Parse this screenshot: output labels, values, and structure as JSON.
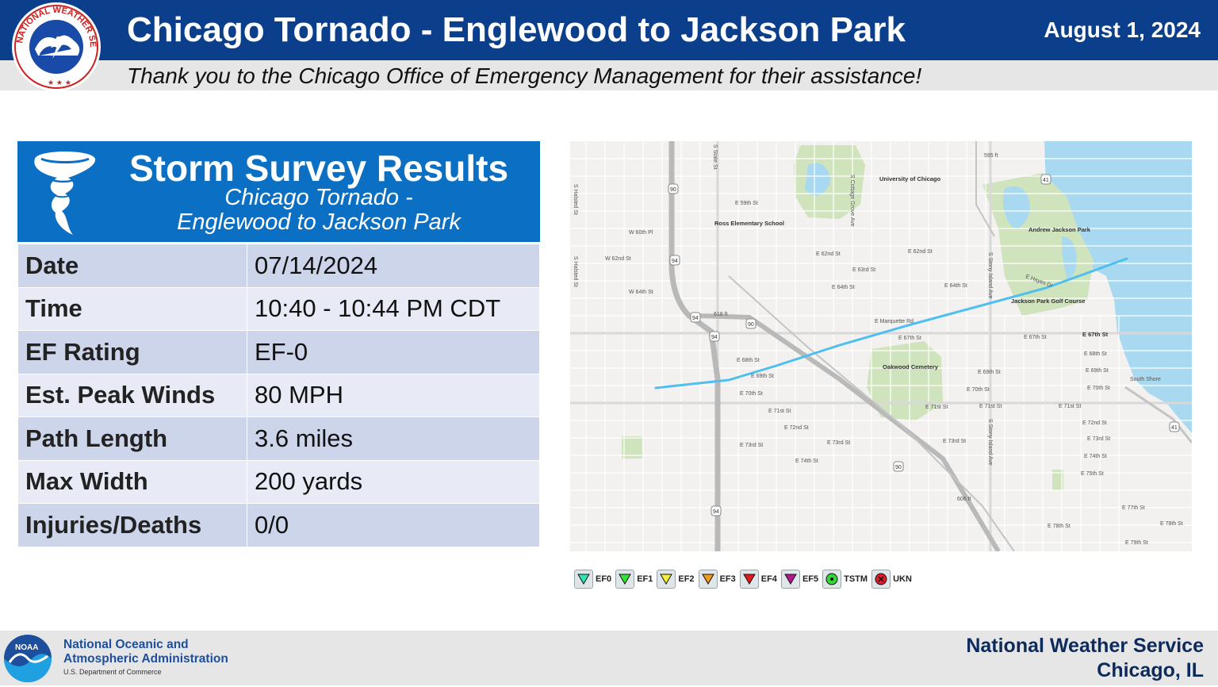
{
  "header": {
    "title": "Chicago Tornado - Englewood to Jackson Park",
    "date": "August 1, 2024",
    "thanks": "Thank you to the Chicago Office of Emergency Management for their assistance!",
    "logo_text": "NATIONAL WEATHER SERVICE",
    "logo_icon": "nws-logo-icon"
  },
  "survey": {
    "title": "Storm Survey Results",
    "subtitle_line1": "Chicago Tornado  -",
    "subtitle_line2": "Englewood to Jackson Park",
    "icon": "tornado-icon",
    "rows": [
      {
        "label": "Date",
        "value": "07/14/2024"
      },
      {
        "label": "Time",
        "value": "10:40 - 10:44 PM CDT"
      },
      {
        "label": "EF Rating",
        "value": "EF-0"
      },
      {
        "label": "Est. Peak Winds",
        "value": "80 MPH"
      },
      {
        "label": "Path Length",
        "value": "3.6 miles"
      },
      {
        "label": "Max Width",
        "value": "200 yards"
      },
      {
        "label": "Injuries/Deaths",
        "value": "0/0"
      }
    ]
  },
  "map": {
    "labels": {
      "uchicago": "University of Chicago",
      "ross": "Ross Elementary School",
      "jackson_park": "Andrew Jackson Park",
      "golf": "Jackson Park Golf Course",
      "oakwood": "Oakwood Cemetery",
      "south_shore": "South Shore",
      "s_halsted": "S Halsted St",
      "w60": "W 60th Pl",
      "w62": "W 62nd St",
      "w64": "W 64th St",
      "e59": "E 59th St",
      "e62": "E 62nd St",
      "e63": "E 63rd St",
      "e64": "E 64th St",
      "e67": "E 67th St",
      "e68": "E 68th St",
      "e69": "E 69th St",
      "e70": "E 70th St",
      "e71": "E 71st St",
      "e72": "E 72nd St",
      "e73": "E 73rd St",
      "e74": "E 74th St",
      "e75": "E 75th St",
      "e77": "E 77th St",
      "e78": "E 78th St",
      "e79": "E 79th St",
      "marquette": "E Marquette Rd",
      "hayes": "E Hayes Dr",
      "stony": "S Stony Island Ave",
      "state": "S State St",
      "cottage": "S Cottage Grove Ave",
      "shield_90": "90",
      "shield_94": "94",
      "shield_41": "41",
      "label_595": "595 ft",
      "label_618": "618 ft",
      "label_606": "606 ft"
    },
    "colors": {
      "track": "#4fbfef",
      "water": "#a9d9f0",
      "park": "#cfe3bd"
    }
  },
  "legend": [
    {
      "label": "EF0",
      "icon": "down-triangle-icon",
      "color": "#2ee6b8"
    },
    {
      "label": "EF1",
      "icon": "down-triangle-icon",
      "color": "#33e633"
    },
    {
      "label": "EF2",
      "icon": "down-triangle-icon",
      "color": "#f2f233"
    },
    {
      "label": "EF3",
      "icon": "down-triangle-icon",
      "color": "#f29a1a"
    },
    {
      "label": "EF4",
      "icon": "down-triangle-icon",
      "color": "#e61a1a"
    },
    {
      "label": "EF5",
      "icon": "down-triangle-icon",
      "color": "#b3168f"
    },
    {
      "label": "TSTM",
      "icon": "dot-circle-icon",
      "color": "#33d633"
    },
    {
      "label": "UKN",
      "icon": "x-circle-icon",
      "color": "#e61a2e"
    }
  ],
  "footer": {
    "noaa_line1": "National Oceanic and",
    "noaa_line2": "Atmospheric Administration",
    "noaa_dept": "U.S. Department of Commerce",
    "nws_line1": "National Weather Service",
    "nws_line2": "Chicago, IL",
    "noaa_logo_text": "NOAA"
  }
}
